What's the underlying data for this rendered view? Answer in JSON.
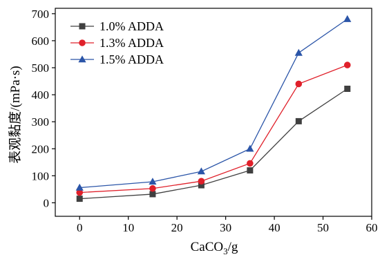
{
  "chart_data": {
    "type": "line",
    "title": "",
    "xlabel": "CaCO3/g",
    "xlabel_main": "CaCO",
    "xlabel_sub": "3",
    "xlabel_tail": "/g",
    "ylabel": "表观黏度/(mPa·s)",
    "xlim": [
      -5,
      60
    ],
    "ylim": [
      -50,
      720
    ],
    "xticks": [
      0,
      10,
      20,
      30,
      40,
      50,
      60
    ],
    "yticks": [
      0,
      100,
      200,
      300,
      400,
      500,
      600,
      700
    ],
    "grid": false,
    "legend_position": "top-left",
    "x": [
      0,
      15,
      25,
      35,
      45,
      55
    ],
    "series": [
      {
        "name": "1.0% ADDA",
        "color": "#404040",
        "marker": "square",
        "values": [
          15,
          32,
          65,
          120,
          302,
          422
        ]
      },
      {
        "name": "1.3% ADDA",
        "color": "#e0202a",
        "marker": "circle",
        "values": [
          38,
          53,
          80,
          146,
          440,
          510
        ]
      },
      {
        "name": "1.5% ADDA",
        "color": "#2b55a8",
        "marker": "triangle",
        "values": [
          56,
          78,
          116,
          200,
          555,
          680
        ]
      }
    ]
  }
}
